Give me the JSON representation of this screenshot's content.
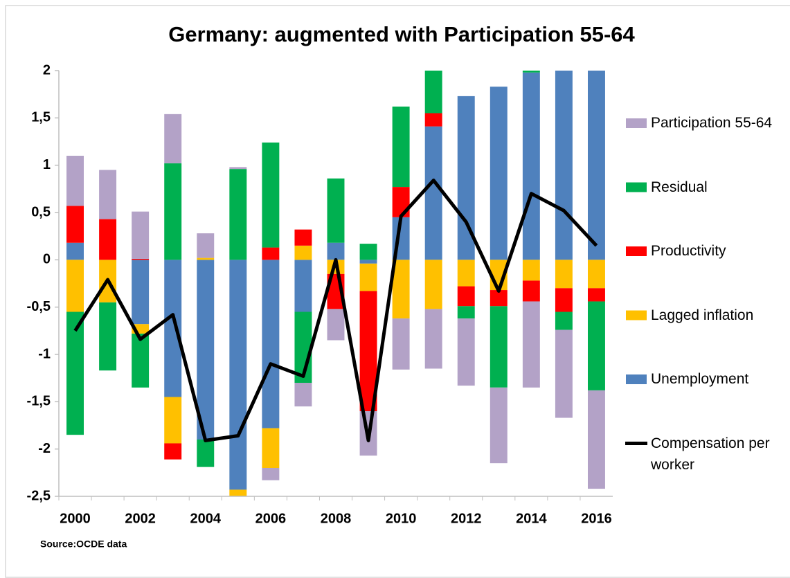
{
  "chart_data": {
    "type": "bar",
    "stacked": true,
    "title": "Germany: augmented with Participation 55-64",
    "source": "Source:OCDE data",
    "categories": [
      "2000",
      null,
      "2002",
      null,
      "2004",
      null,
      "2006",
      null,
      "2008",
      null,
      "2010",
      null,
      "2012",
      null,
      "2014",
      null,
      "2016"
    ],
    "ylim": [
      -2.5,
      2
    ],
    "yticks": [
      {
        "value": -2.5,
        "label": "-2,5"
      },
      -2,
      {
        "value": -1.5,
        "label": "-1,5"
      },
      -1,
      {
        "value": -0.5,
        "label": "-0,5"
      },
      0,
      {
        "value": 0.5,
        "label": "0,5"
      },
      1,
      {
        "value": 1.5,
        "label": "1,5"
      },
      2
    ],
    "grid": false,
    "legend": "right",
    "series": [
      {
        "name": "Unemployment",
        "color": "#4f81bd",
        "values": [
          0.18,
          0,
          -0.68,
          -1.45,
          -1.9,
          -2.43,
          -1.78,
          -0.55,
          0.18,
          -0.04,
          0.45,
          1.41,
          1.73,
          1.83,
          1.98,
          2.1,
          2.2
        ]
      },
      {
        "name": "Lagged inflation",
        "color": "#ffc000",
        "values": [
          -0.55,
          -0.45,
          -0.1,
          -0.49,
          0.02,
          -0.07,
          -0.42,
          0.15,
          -0.15,
          -0.29,
          -0.62,
          -0.52,
          -0.28,
          -0.32,
          -0.22,
          -0.3,
          -0.3
        ]
      },
      {
        "name": "Productivity",
        "color": "#ff0000",
        "values": [
          0.39,
          0.43,
          0.01,
          -0.17,
          0,
          0,
          0.13,
          0.17,
          -0.37,
          -1.27,
          0.32,
          0.14,
          -0.21,
          -0.17,
          -0.22,
          -0.25,
          -0.14
        ]
      },
      {
        "name": "Residual",
        "color": "#00b050",
        "values": [
          -1.3,
          -0.72,
          -0.57,
          1.02,
          -0.29,
          0.96,
          1.11,
          -0.75,
          0.68,
          0.17,
          0.85,
          0.5,
          -0.13,
          -0.86,
          0.05,
          -0.19,
          -0.94
        ]
      },
      {
        "name": "Participation 55-64",
        "color": "#b3a2c7",
        "values": [
          0.53,
          0.52,
          0.5,
          0.52,
          0.26,
          0.02,
          -0.13,
          -0.25,
          -0.33,
          -0.47,
          -0.54,
          -0.63,
          -0.71,
          -0.8,
          -0.91,
          -0.93,
          -1.04
        ]
      },
      {
        "name": "Compensation per worker",
        "color": "#000000",
        "type": "line",
        "values": [
          -0.75,
          -0.21,
          -0.84,
          -0.58,
          -1.91,
          -1.86,
          -1.1,
          -1.23,
          0.0,
          -1.91,
          0.46,
          0.84,
          0.4,
          -0.33,
          0.7,
          0.52,
          0.15
        ]
      }
    ]
  }
}
